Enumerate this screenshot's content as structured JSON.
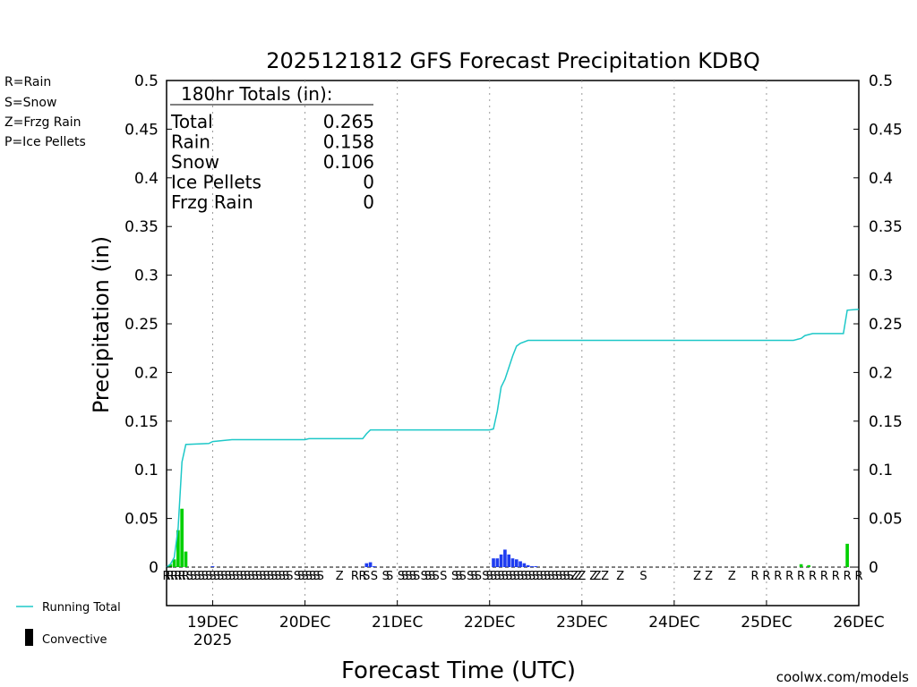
{
  "chart_data": {
    "type": "bar+line",
    "title": "2025121812 GFS Forecast Precipitation KDBQ",
    "xlabel": "Forecast Time (UTC)",
    "ylabel": "Precipitation (in)",
    "ylim": [
      0,
      0.5
    ],
    "y_ticks": [
      0,
      0.05,
      0.1,
      0.15,
      0.2,
      0.25,
      0.3,
      0.35,
      0.4,
      0.45,
      0.5
    ],
    "y_tick_labels": [
      "0",
      "0.05",
      "0.1",
      "0.15",
      "0.2",
      "0.25",
      "0.3",
      "0.35",
      "0.4",
      "0.45",
      "0.5"
    ],
    "x_unit": "forecast hour",
    "xlim": [
      0,
      180
    ],
    "x_ticks": [
      {
        "hour": 12,
        "label": "19DEC",
        "sublabel": "2025"
      },
      {
        "hour": 36,
        "label": "20DEC",
        "sublabel": ""
      },
      {
        "hour": 60,
        "label": "21DEC",
        "sublabel": ""
      },
      {
        "hour": 84,
        "label": "22DEC",
        "sublabel": ""
      },
      {
        "hour": 108,
        "label": "23DEC",
        "sublabel": ""
      },
      {
        "hour": 132,
        "label": "24DEC",
        "sublabel": ""
      },
      {
        "hour": 156,
        "label": "25DEC",
        "sublabel": ""
      },
      {
        "hour": 180,
        "label": "26DEC",
        "sublabel": ""
      }
    ],
    "grid": "vertical dotted at day boundaries",
    "totals": {
      "header": "180hr Totals (in):",
      "rows": [
        {
          "label": "Total",
          "value": "0.265"
        },
        {
          "label": "Rain",
          "value": "0.158"
        },
        {
          "label": "Snow",
          "value": "0.106"
        },
        {
          "label": "Ice Pellets",
          "value": "0"
        },
        {
          "label": "Frzg Rain",
          "value": "0"
        }
      ]
    },
    "series": [
      {
        "name": "Running Total",
        "type": "line",
        "color": "#1ec8c8",
        "points": [
          [
            0,
            0
          ],
          [
            1,
            0.003
          ],
          [
            2,
            0.01
          ],
          [
            3,
            0.04
          ],
          [
            4,
            0.108
          ],
          [
            5,
            0.126
          ],
          [
            11,
            0.127
          ],
          [
            12,
            0.129
          ],
          [
            17,
            0.131
          ],
          [
            36,
            0.131
          ],
          [
            37,
            0.132
          ],
          [
            51,
            0.132
          ],
          [
            52,
            0.137
          ],
          [
            53,
            0.141
          ],
          [
            84,
            0.141
          ],
          [
            85,
            0.142
          ],
          [
            86,
            0.16
          ],
          [
            87,
            0.185
          ],
          [
            88,
            0.193
          ],
          [
            89,
            0.205
          ],
          [
            90,
            0.217
          ],
          [
            91,
            0.227
          ],
          [
            92,
            0.23
          ],
          [
            94,
            0.233
          ],
          [
            163,
            0.233
          ],
          [
            164,
            0.234
          ],
          [
            165,
            0.235
          ],
          [
            166,
            0.238
          ],
          [
            168,
            0.24
          ],
          [
            176,
            0.24
          ],
          [
            177,
            0.264
          ],
          [
            180,
            0.265
          ]
        ]
      },
      {
        "name": "Rain",
        "type": "bar",
        "color": "#00d000",
        "points": [
          [
            1,
            0.003
          ],
          [
            2,
            0.008
          ],
          [
            3,
            0.038
          ],
          [
            4,
            0.06
          ],
          [
            5,
            0.016
          ],
          [
            165,
            0.003
          ],
          [
            167,
            0.002
          ],
          [
            177,
            0.024
          ]
        ]
      },
      {
        "name": "Snow",
        "type": "bar",
        "color": "#1e3cf0",
        "points": [
          [
            12,
            0.001
          ],
          [
            52,
            0.004
          ],
          [
            53,
            0.005
          ],
          [
            54,
            0.001
          ],
          [
            85,
            0.009
          ],
          [
            86,
            0.009
          ],
          [
            87,
            0.013
          ],
          [
            88,
            0.018
          ],
          [
            89,
            0.013
          ],
          [
            90,
            0.009
          ],
          [
            91,
            0.008
          ],
          [
            92,
            0.006
          ],
          [
            93,
            0.004
          ],
          [
            94,
            0.002
          ],
          [
            95,
            0.001
          ],
          [
            96,
            0.001
          ]
        ]
      }
    ],
    "ptype_row": [
      {
        "hour": 0,
        "t": "R"
      },
      {
        "hour": 1,
        "t": "R"
      },
      {
        "hour": 2,
        "t": "R"
      },
      {
        "hour": 3,
        "t": "R"
      },
      {
        "hour": 4,
        "t": "R"
      },
      {
        "hour": 5,
        "t": "R"
      },
      {
        "hour": 6,
        "t": "S"
      },
      {
        "hour": 7,
        "t": "S"
      },
      {
        "hour": 8,
        "t": "S"
      },
      {
        "hour": 9,
        "t": "S"
      },
      {
        "hour": 10,
        "t": "S"
      },
      {
        "hour": 11,
        "t": "S"
      },
      {
        "hour": 12,
        "t": "S"
      },
      {
        "hour": 13,
        "t": "S"
      },
      {
        "hour": 14,
        "t": "S"
      },
      {
        "hour": 15,
        "t": "S"
      },
      {
        "hour": 16,
        "t": "S"
      },
      {
        "hour": 17,
        "t": "S"
      },
      {
        "hour": 18,
        "t": "S"
      },
      {
        "hour": 19,
        "t": "S"
      },
      {
        "hour": 20,
        "t": "S"
      },
      {
        "hour": 21,
        "t": "S"
      },
      {
        "hour": 22,
        "t": "S"
      },
      {
        "hour": 23,
        "t": "S"
      },
      {
        "hour": 24,
        "t": "S"
      },
      {
        "hour": 25,
        "t": "S"
      },
      {
        "hour": 26,
        "t": "S"
      },
      {
        "hour": 27,
        "t": "S"
      },
      {
        "hour": 28,
        "t": "S"
      },
      {
        "hour": 29,
        "t": "S"
      },
      {
        "hour": 30,
        "t": "S"
      },
      {
        "hour": 31,
        "t": "S"
      },
      {
        "hour": 32,
        "t": "S"
      },
      {
        "hour": 34,
        "t": "S"
      },
      {
        "hour": 35,
        "t": "S"
      },
      {
        "hour": 36,
        "t": "S"
      },
      {
        "hour": 37,
        "t": "S"
      },
      {
        "hour": 38,
        "t": "S"
      },
      {
        "hour": 39,
        "t": "S"
      },
      {
        "hour": 40,
        "t": "S"
      },
      {
        "hour": 45,
        "t": "Z"
      },
      {
        "hour": 49,
        "t": "R"
      },
      {
        "hour": 51,
        "t": "R"
      },
      {
        "hour": 52,
        "t": "S"
      },
      {
        "hour": 54,
        "t": "S"
      },
      {
        "hour": 57,
        "t": "S"
      },
      {
        "hour": 58,
        "t": "S"
      },
      {
        "hour": 61,
        "t": "S"
      },
      {
        "hour": 62,
        "t": "S"
      },
      {
        "hour": 63,
        "t": "S"
      },
      {
        "hour": 64,
        "t": "S"
      },
      {
        "hour": 65,
        "t": "S"
      },
      {
        "hour": 67,
        "t": "S"
      },
      {
        "hour": 68,
        "t": "S"
      },
      {
        "hour": 69,
        "t": "S"
      },
      {
        "hour": 70,
        "t": "S"
      },
      {
        "hour": 72,
        "t": "S"
      },
      {
        "hour": 75,
        "t": "S"
      },
      {
        "hour": 76,
        "t": "S"
      },
      {
        "hour": 77,
        "t": "S"
      },
      {
        "hour": 79,
        "t": "S"
      },
      {
        "hour": 80,
        "t": "S"
      },
      {
        "hour": 81,
        "t": "S"
      },
      {
        "hour": 83,
        "t": "S"
      },
      {
        "hour": 84,
        "t": "S"
      },
      {
        "hour": 85,
        "t": "S"
      },
      {
        "hour": 86,
        "t": "S"
      },
      {
        "hour": 87,
        "t": "S"
      },
      {
        "hour": 88,
        "t": "S"
      },
      {
        "hour": 89,
        "t": "S"
      },
      {
        "hour": 90,
        "t": "S"
      },
      {
        "hour": 91,
        "t": "S"
      },
      {
        "hour": 92,
        "t": "S"
      },
      {
        "hour": 93,
        "t": "S"
      },
      {
        "hour": 94,
        "t": "S"
      },
      {
        "hour": 95,
        "t": "S"
      },
      {
        "hour": 96,
        "t": "S"
      },
      {
        "hour": 97,
        "t": "S"
      },
      {
        "hour": 98,
        "t": "S"
      },
      {
        "hour": 99,
        "t": "S"
      },
      {
        "hour": 100,
        "t": "S"
      },
      {
        "hour": 101,
        "t": "S"
      },
      {
        "hour": 102,
        "t": "S"
      },
      {
        "hour": 103,
        "t": "S"
      },
      {
        "hour": 104,
        "t": "S"
      },
      {
        "hour": 105,
        "t": "S"
      },
      {
        "hour": 106,
        "t": "Z"
      },
      {
        "hour": 107,
        "t": "Z"
      },
      {
        "hour": 108,
        "t": "Z"
      },
      {
        "hour": 111,
        "t": "Z"
      },
      {
        "hour": 112,
        "t": "Z"
      },
      {
        "hour": 114,
        "t": "Z"
      },
      {
        "hour": 118,
        "t": "Z"
      },
      {
        "hour": 124,
        "t": "S"
      },
      {
        "hour": 138,
        "t": "Z"
      },
      {
        "hour": 141,
        "t": "Z"
      },
      {
        "hour": 147,
        "t": "Z"
      },
      {
        "hour": 153,
        "t": "R"
      },
      {
        "hour": 156,
        "t": "R"
      },
      {
        "hour": 159,
        "t": "R"
      },
      {
        "hour": 162,
        "t": "R"
      },
      {
        "hour": 165,
        "t": "R"
      },
      {
        "hour": 168,
        "t": "R"
      },
      {
        "hour": 171,
        "t": "R"
      },
      {
        "hour": 174,
        "t": "R"
      },
      {
        "hour": 177,
        "t": "R"
      },
      {
        "hour": 180,
        "t": "R"
      }
    ]
  },
  "legend": {
    "ptype": [
      {
        "text": "R=Rain",
        "color": "#00d000"
      },
      {
        "text": "S=Snow",
        "color": "#1e3cf0"
      },
      {
        "text": "Z=Frzg Rain",
        "color": "#f08c28"
      },
      {
        "text": "P=Ice Pellets",
        "color": "#e61e8c"
      }
    ],
    "running_total_label": "Running Total",
    "convective_label": "Convective"
  },
  "ptype_colors": {
    "R": "#00d000",
    "S": "#1e3cf0",
    "Z": "#f08c28",
    "P": "#e61e8c"
  },
  "credit": "coolwx.com/models",
  "credit_color": "#c81e1e"
}
